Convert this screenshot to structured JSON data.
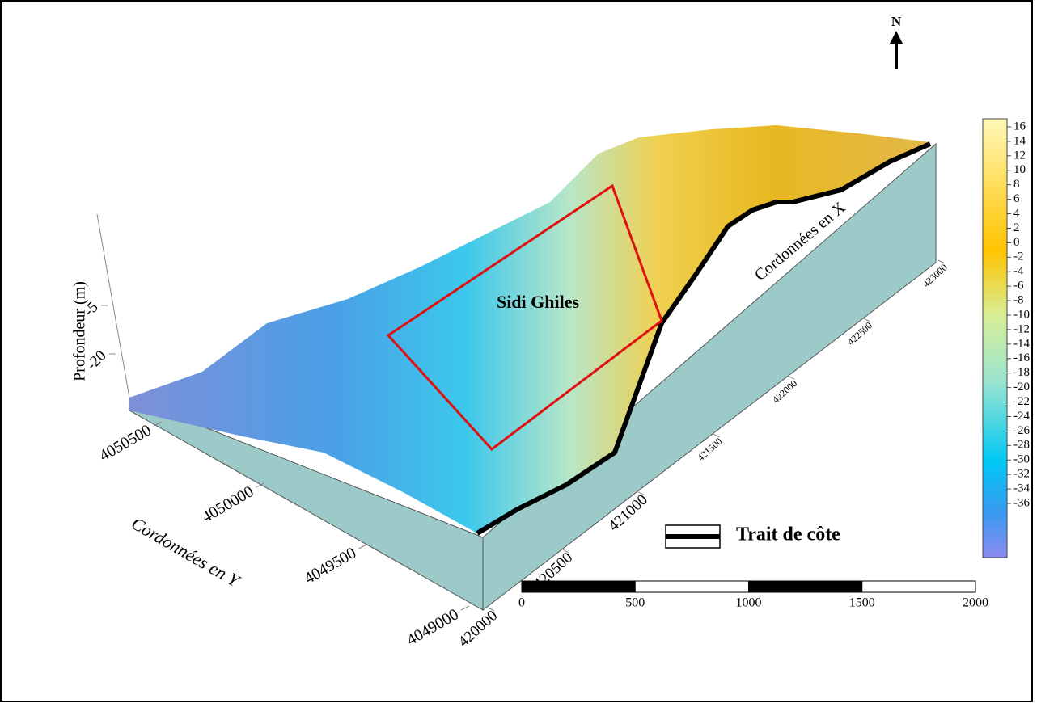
{
  "north": "N",
  "depth_axis": {
    "label": "Profondeur (m)",
    "ticks": [
      -5,
      -20
    ]
  },
  "site_label": "Sidi Ghiles",
  "y_axis": {
    "label": "Cordonnées en Y",
    "ticks": [
      4050500,
      4050000,
      4049500,
      4049000
    ]
  },
  "x_axis": {
    "label": "Cordonnées en X",
    "ticks": [
      420000,
      420500,
      421000,
      421500,
      422000,
      422500,
      423000
    ]
  },
  "legend": {
    "label": "Trait de côte"
  },
  "scale_bar": {
    "ticks": [
      0,
      500,
      1000,
      1500,
      2000
    ]
  },
  "colorbar": {
    "ticks": [
      16,
      14,
      12,
      10,
      8,
      6,
      4,
      2,
      0,
      -2,
      -4,
      -6,
      -8,
      -10,
      -12,
      -14,
      -16,
      -18,
      -20,
      -22,
      -24,
      -26,
      -28,
      -30,
      -32,
      -34,
      -36
    ]
  }
}
